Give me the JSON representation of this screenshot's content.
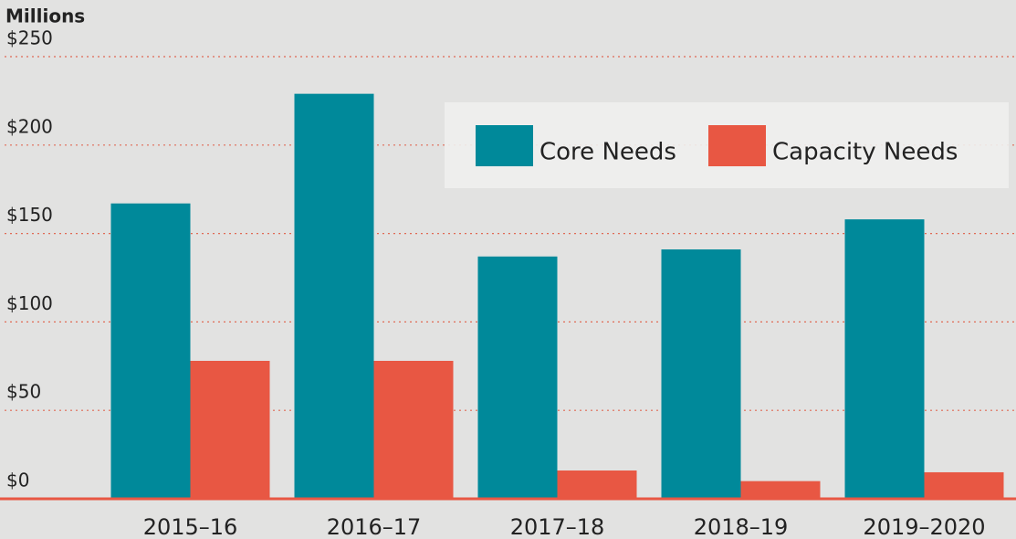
{
  "chart_data": {
    "type": "bar",
    "y_axis_label": "Millions",
    "categories": [
      "2015–16",
      "2016–17",
      "2017–18",
      "2018–19",
      "2019–2020"
    ],
    "series": [
      {
        "name": "Core Needs",
        "color": "#00899a",
        "values": [
          167,
          229,
          137,
          141,
          158
        ]
      },
      {
        "name": "Capacity Needs",
        "color": "#e85743",
        "values": [
          78,
          78,
          16,
          10,
          15
        ]
      }
    ],
    "ylim": [
      0,
      250
    ],
    "yticks": [
      {
        "value": 0,
        "label": "$0"
      },
      {
        "value": 50,
        "label": "$50"
      },
      {
        "value": 100,
        "label": "$100"
      },
      {
        "value": 150,
        "label": "$150"
      },
      {
        "value": 200,
        "label": "$200"
      },
      {
        "value": 250,
        "label": "$250"
      }
    ],
    "grid": true,
    "legend": "top-right"
  }
}
